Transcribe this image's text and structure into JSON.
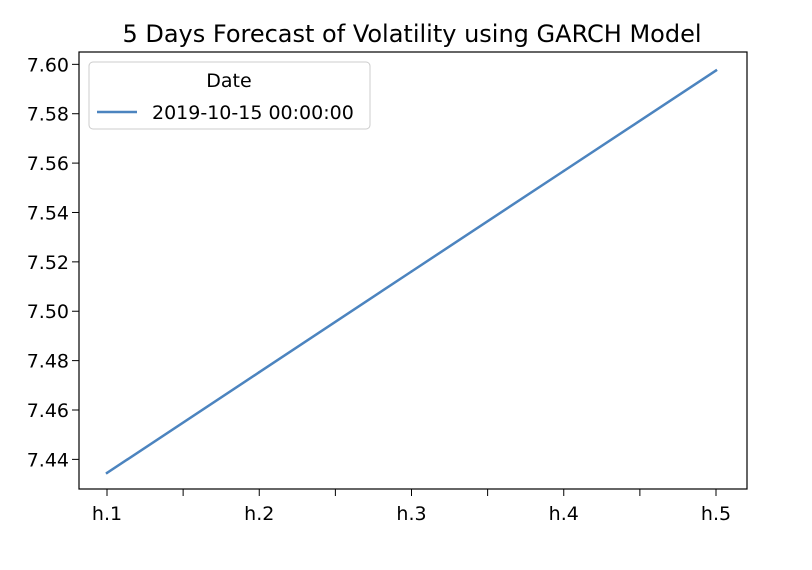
{
  "chart_data": {
    "type": "line",
    "title": "5 Days Forecast of Volatility using GARCH Model",
    "xlabel": "",
    "ylabel": "",
    "categories": [
      "h.1",
      "h.2",
      "h.3",
      "h.4",
      "h.5"
    ],
    "series": [
      {
        "name": "2019-10-15 00:00:00",
        "color": "#4c84bf",
        "values": [
          7.4345,
          7.4753,
          7.5161,
          7.5568,
          7.5975
        ]
      }
    ],
    "ylim": [
      7.428,
      7.605
    ],
    "yticks": [
      "7.44",
      "7.46",
      "7.48",
      "7.50",
      "7.52",
      "7.54",
      "7.56",
      "7.58",
      "7.60"
    ],
    "legend": {
      "title": "Date",
      "position": "top-left"
    },
    "grid": false
  }
}
